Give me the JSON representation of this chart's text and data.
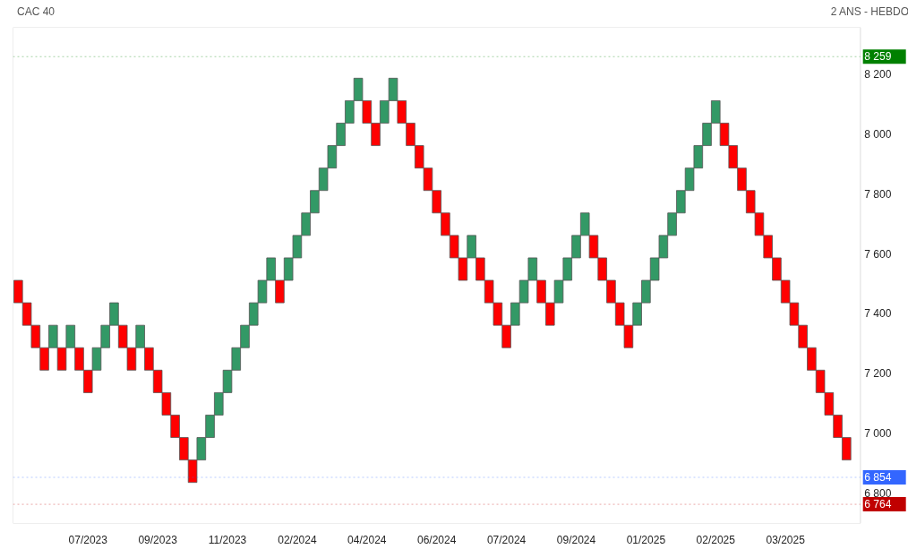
{
  "chart_data": {
    "type": "bar",
    "title": "CAC 40",
    "subtitle": "2 ANS - HEBDO",
    "categories": [
      null,
      null,
      null,
      null,
      null,
      null,
      null,
      null,
      "07/2023",
      null,
      null,
      null,
      null,
      null,
      null,
      null,
      "09/2023",
      null,
      null,
      null,
      null,
      null,
      null,
      null,
      "11/2023",
      null,
      null,
      null,
      null,
      null,
      null,
      null,
      "02/2024",
      null,
      null,
      null,
      null,
      null,
      null,
      null,
      "04/2024",
      null,
      null,
      null,
      null,
      null,
      null,
      null,
      "06/2024",
      null,
      null,
      null,
      null,
      null,
      null,
      null,
      "07/2024",
      null,
      null,
      null,
      null,
      null,
      null,
      null,
      "09/2024",
      null,
      null,
      null,
      null,
      null,
      null,
      null,
      "01/2025",
      null,
      null,
      null,
      null,
      null,
      null,
      null,
      "02/2025",
      null,
      null,
      null,
      null,
      null,
      null,
      null,
      "03/2025",
      null,
      null,
      null,
      null,
      null,
      null,
      null
    ],
    "base": [
      7437,
      7362,
      7287,
      7212,
      7287,
      7212,
      7287,
      7212,
      7137,
      7212,
      7287,
      7362,
      7287,
      7212,
      7287,
      7212,
      7137,
      7062,
      6987,
      6912,
      6837,
      6912,
      6987,
      7062,
      7137,
      7212,
      7287,
      7362,
      7437,
      7512,
      7437,
      7512,
      7587,
      7662,
      7737,
      7812,
      7887,
      7962,
      8037,
      8112,
      8037,
      7962,
      8037,
      8112,
      8037,
      7962,
      7887,
      7812,
      7737,
      7662,
      7587,
      7512,
      7587,
      7512,
      7437,
      7362,
      7287,
      7362,
      7437,
      7512,
      7437,
      7362,
      7437,
      7512,
      7587,
      7662,
      7587,
      7512,
      7437,
      7362,
      7287,
      7362,
      7437,
      7512,
      7587,
      7662,
      7737,
      7812,
      7887,
      7962,
      8037,
      7962,
      7887,
      7812,
      7737,
      7662,
      7587,
      7512,
      7437,
      7362,
      7287,
      7212,
      7137,
      7062,
      6987,
      6912
    ],
    "values": [
      75,
      75,
      75,
      75,
      75,
      75,
      75,
      75,
      75,
      75,
      75,
      75,
      75,
      75,
      75,
      75,
      75,
      75,
      75,
      75,
      75,
      75,
      75,
      75,
      75,
      75,
      75,
      75,
      75,
      75,
      75,
      75,
      75,
      75,
      75,
      75,
      75,
      75,
      75,
      75,
      75,
      75,
      75,
      75,
      75,
      75,
      75,
      75,
      75,
      75,
      75,
      75,
      75,
      75,
      75,
      75,
      75,
      75,
      75,
      75,
      75,
      75,
      75,
      75,
      75,
      75,
      75,
      75,
      75,
      75,
      75,
      75,
      75,
      75,
      75,
      75,
      75,
      75,
      75,
      75,
      75,
      75,
      75,
      75,
      75,
      75,
      75,
      75,
      75,
      75,
      75,
      75,
      75,
      75,
      75,
      75
    ],
    "colors": [
      "#ff0000",
      "#ff0000",
      "#ff0000",
      "#ff0000",
      "#339966",
      "#ff0000",
      "#339966",
      "#ff0000",
      "#ff0000",
      "#339966",
      "#339966",
      "#339966",
      "#ff0000",
      "#ff0000",
      "#339966",
      "#ff0000",
      "#ff0000",
      "#ff0000",
      "#ff0000",
      "#ff0000",
      "#ff0000",
      "#339966",
      "#339966",
      "#339966",
      "#339966",
      "#339966",
      "#339966",
      "#339966",
      "#339966",
      "#339966",
      "#ff0000",
      "#339966",
      "#339966",
      "#339966",
      "#339966",
      "#339966",
      "#339966",
      "#339966",
      "#339966",
      "#339966",
      "#ff0000",
      "#ff0000",
      "#339966",
      "#339966",
      "#ff0000",
      "#ff0000",
      "#ff0000",
      "#ff0000",
      "#ff0000",
      "#ff0000",
      "#ff0000",
      "#ff0000",
      "#339966",
      "#ff0000",
      "#ff0000",
      "#ff0000",
      "#ff0000",
      "#339966",
      "#339966",
      "#339966",
      "#ff0000",
      "#ff0000",
      "#339966",
      "#339966",
      "#339966",
      "#339966",
      "#ff0000",
      "#ff0000",
      "#ff0000",
      "#ff0000",
      "#ff0000",
      "#339966",
      "#339966",
      "#339966",
      "#339966",
      "#339966",
      "#339966",
      "#339966",
      "#339966",
      "#339966",
      "#339966",
      "#ff0000",
      "#ff0000",
      "#ff0000",
      "#ff0000",
      "#ff0000",
      "#ff0000",
      "#ff0000",
      "#ff0000",
      "#ff0000",
      "#ff0000",
      "#ff0000",
      "#ff0000",
      "#ff0000",
      "#ff0000",
      "#ff0000"
    ],
    "ylim": [
      6700,
      8357
    ],
    "yticks": [
      {
        "value": 6800,
        "label": "6 800"
      },
      {
        "value": 7000,
        "label": "7 000"
      },
      {
        "value": 7200,
        "label": "7 200"
      },
      {
        "value": 7400,
        "label": "7 400"
      },
      {
        "value": 7600,
        "label": "7 600"
      },
      {
        "value": 7800,
        "label": "7 800"
      },
      {
        "value": 8000,
        "label": "8 000"
      },
      {
        "value": 8200,
        "label": "8 200"
      }
    ],
    "ref_lines": [
      {
        "axis": "y",
        "value": 8259,
        "label": "8 259",
        "color": "#008000"
      },
      {
        "axis": "y",
        "value": 6854,
        "label": "6 854",
        "color": "#3366ff"
      },
      {
        "axis": "y",
        "value": 6764,
        "label": "6 764",
        "color": "#c00000"
      }
    ]
  }
}
